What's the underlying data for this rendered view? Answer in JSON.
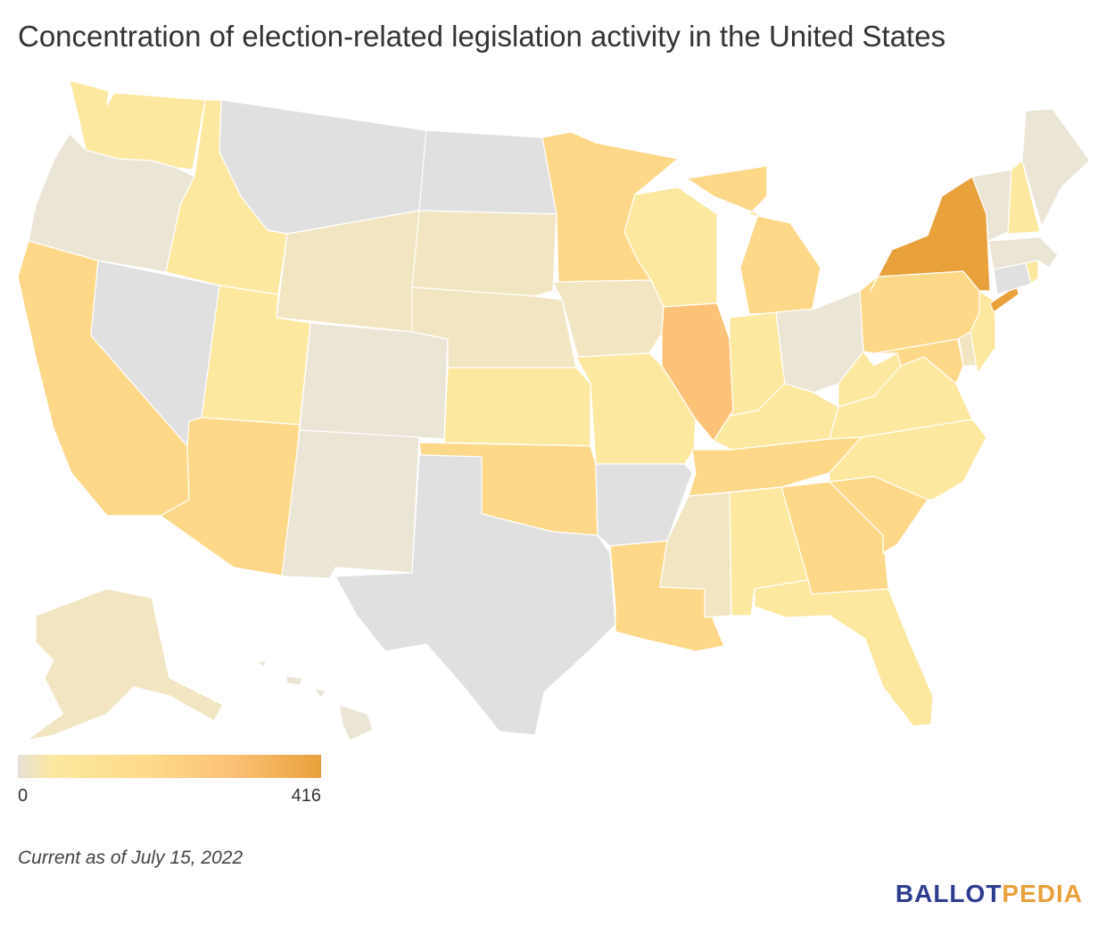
{
  "title": "Concentration of election-related legislation activity in the United States",
  "legend": {
    "min": "0",
    "max": "416",
    "color_start": "#e6e0d6",
    "color_end": "#e9a13b"
  },
  "colors": {
    "no_data": "#e0e0e0",
    "very_low": "#ebe5d6",
    "low": "#f2e6c2",
    "low_mid": "#fce89e",
    "mid": "#fdd888",
    "mid_high": "#fcc277",
    "high": "#e9a13b",
    "stroke": "#ffffff"
  },
  "states": [
    {
      "code": "WA",
      "level": "low_mid"
    },
    {
      "code": "OR",
      "level": "very_low"
    },
    {
      "code": "CA",
      "level": "mid"
    },
    {
      "code": "NV",
      "level": "no_data"
    },
    {
      "code": "ID",
      "level": "low_mid"
    },
    {
      "code": "MT",
      "level": "no_data"
    },
    {
      "code": "WY",
      "level": "low"
    },
    {
      "code": "UT",
      "level": "low_mid"
    },
    {
      "code": "AZ",
      "level": "mid"
    },
    {
      "code": "CO",
      "level": "very_low"
    },
    {
      "code": "NM",
      "level": "very_low"
    },
    {
      "code": "ND",
      "level": "no_data"
    },
    {
      "code": "SD",
      "level": "low"
    },
    {
      "code": "NE",
      "level": "low"
    },
    {
      "code": "KS",
      "level": "low_mid"
    },
    {
      "code": "OK",
      "level": "mid"
    },
    {
      "code": "TX",
      "level": "no_data"
    },
    {
      "code": "MN",
      "level": "mid"
    },
    {
      "code": "IA",
      "level": "low"
    },
    {
      "code": "MO",
      "level": "low_mid"
    },
    {
      "code": "AR",
      "level": "no_data"
    },
    {
      "code": "LA",
      "level": "mid"
    },
    {
      "code": "WI",
      "level": "low_mid"
    },
    {
      "code": "IL",
      "level": "mid_high"
    },
    {
      "code": "MI",
      "level": "mid"
    },
    {
      "code": "IN",
      "level": "low_mid"
    },
    {
      "code": "OH",
      "level": "very_low"
    },
    {
      "code": "KY",
      "level": "low_mid"
    },
    {
      "code": "TN",
      "level": "mid"
    },
    {
      "code": "MS",
      "level": "low"
    },
    {
      "code": "AL",
      "level": "low_mid"
    },
    {
      "code": "GA",
      "level": "mid"
    },
    {
      "code": "FL",
      "level": "low_mid"
    },
    {
      "code": "SC",
      "level": "mid"
    },
    {
      "code": "NC",
      "level": "low_mid"
    },
    {
      "code": "VA",
      "level": "low_mid"
    },
    {
      "code": "WV",
      "level": "low_mid"
    },
    {
      "code": "MD",
      "level": "mid"
    },
    {
      "code": "DE",
      "level": "low"
    },
    {
      "code": "NJ",
      "level": "low_mid"
    },
    {
      "code": "PA",
      "level": "mid"
    },
    {
      "code": "NY",
      "level": "high"
    },
    {
      "code": "CT",
      "level": "no_data"
    },
    {
      "code": "RI",
      "level": "low_mid"
    },
    {
      "code": "MA",
      "level": "very_low"
    },
    {
      "code": "VT",
      "level": "very_low"
    },
    {
      "code": "NH",
      "level": "low_mid"
    },
    {
      "code": "ME",
      "level": "very_low"
    },
    {
      "code": "AK",
      "level": "low"
    },
    {
      "code": "HI",
      "level": "very_low"
    }
  ],
  "note": "Current as of July 15, 2022",
  "logo": {
    "part1": "BALLOT",
    "part2": "PEDIA"
  }
}
